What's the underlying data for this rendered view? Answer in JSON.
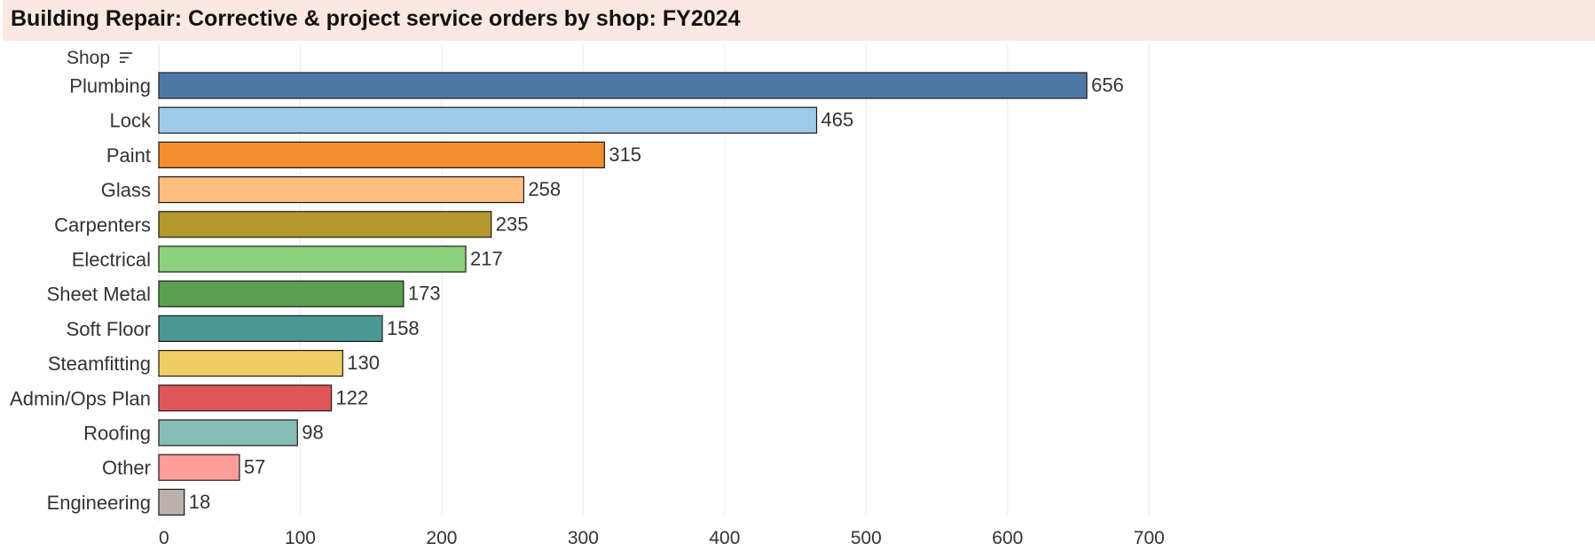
{
  "title": "Building Repair: Corrective & project service orders by shop: FY2024",
  "row_header": "Shop",
  "sort_icon": "sort-descending-icon",
  "chart_data": {
    "type": "bar",
    "orientation": "horizontal",
    "title": "Building Repair: Corrective & project service orders by shop: FY2024",
    "xlabel": "",
    "ylabel": "Shop",
    "xlim": [
      0,
      700
    ],
    "xticks": [
      0,
      100,
      200,
      300,
      400,
      500,
      600,
      700
    ],
    "grid": true,
    "categories": [
      "Plumbing",
      "Lock",
      "Paint",
      "Glass",
      "Carpenters",
      "Electrical",
      "Sheet Metal",
      "Soft Floor",
      "Steamfitting",
      "Admin/Ops Plan",
      "Roofing",
      "Other",
      "Engineering"
    ],
    "values": [
      656,
      465,
      315,
      258,
      235,
      217,
      173,
      158,
      130,
      122,
      98,
      57,
      18
    ],
    "colors": [
      "#4e79a7",
      "#a0cbe8",
      "#f28e2b",
      "#ffbe7d",
      "#b6992d",
      "#8cd17d",
      "#59a14f",
      "#499894",
      "#f1ce63",
      "#e15759",
      "#86bcb6",
      "#ff9d9a",
      "#bab0ac"
    ]
  }
}
